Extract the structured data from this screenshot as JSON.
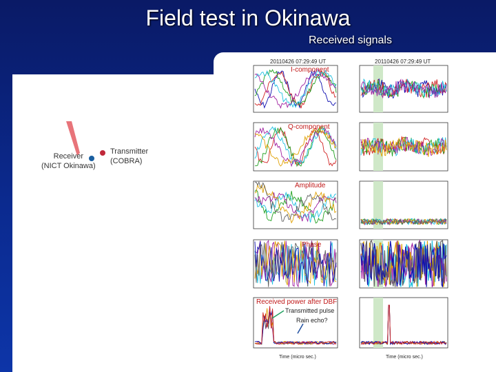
{
  "slide": {
    "title": "Field test in Okinawa",
    "subtitle": "Received signals"
  },
  "map": {
    "receiver_label_line1": "Receiver",
    "receiver_label_line2": "(NICT Okinawa)",
    "transmitter_label_line1": "Transmitter",
    "transmitter_label_line2": "(COBRA)"
  },
  "plots": {
    "timestamp_left": "20110426 07:29:49 UT",
    "timestamp_right": "20110426 07:29:49 UT",
    "panels": [
      {
        "label": "I-component"
      },
      {
        "label": "Q-component"
      },
      {
        "label": "Amplitude"
      },
      {
        "label": "Phase"
      },
      {
        "label": "Received power after DBF"
      }
    ],
    "annotations": {
      "transmitted_pulse": "Transmitted pulse",
      "rain_echo": "Rain echo?"
    },
    "xlabel_left": "Time (micro sec.)",
    "xlabel_right": "Time (micro sec.)"
  },
  "colors": {
    "accent": "#c01818",
    "background": "#0b2a8f"
  }
}
